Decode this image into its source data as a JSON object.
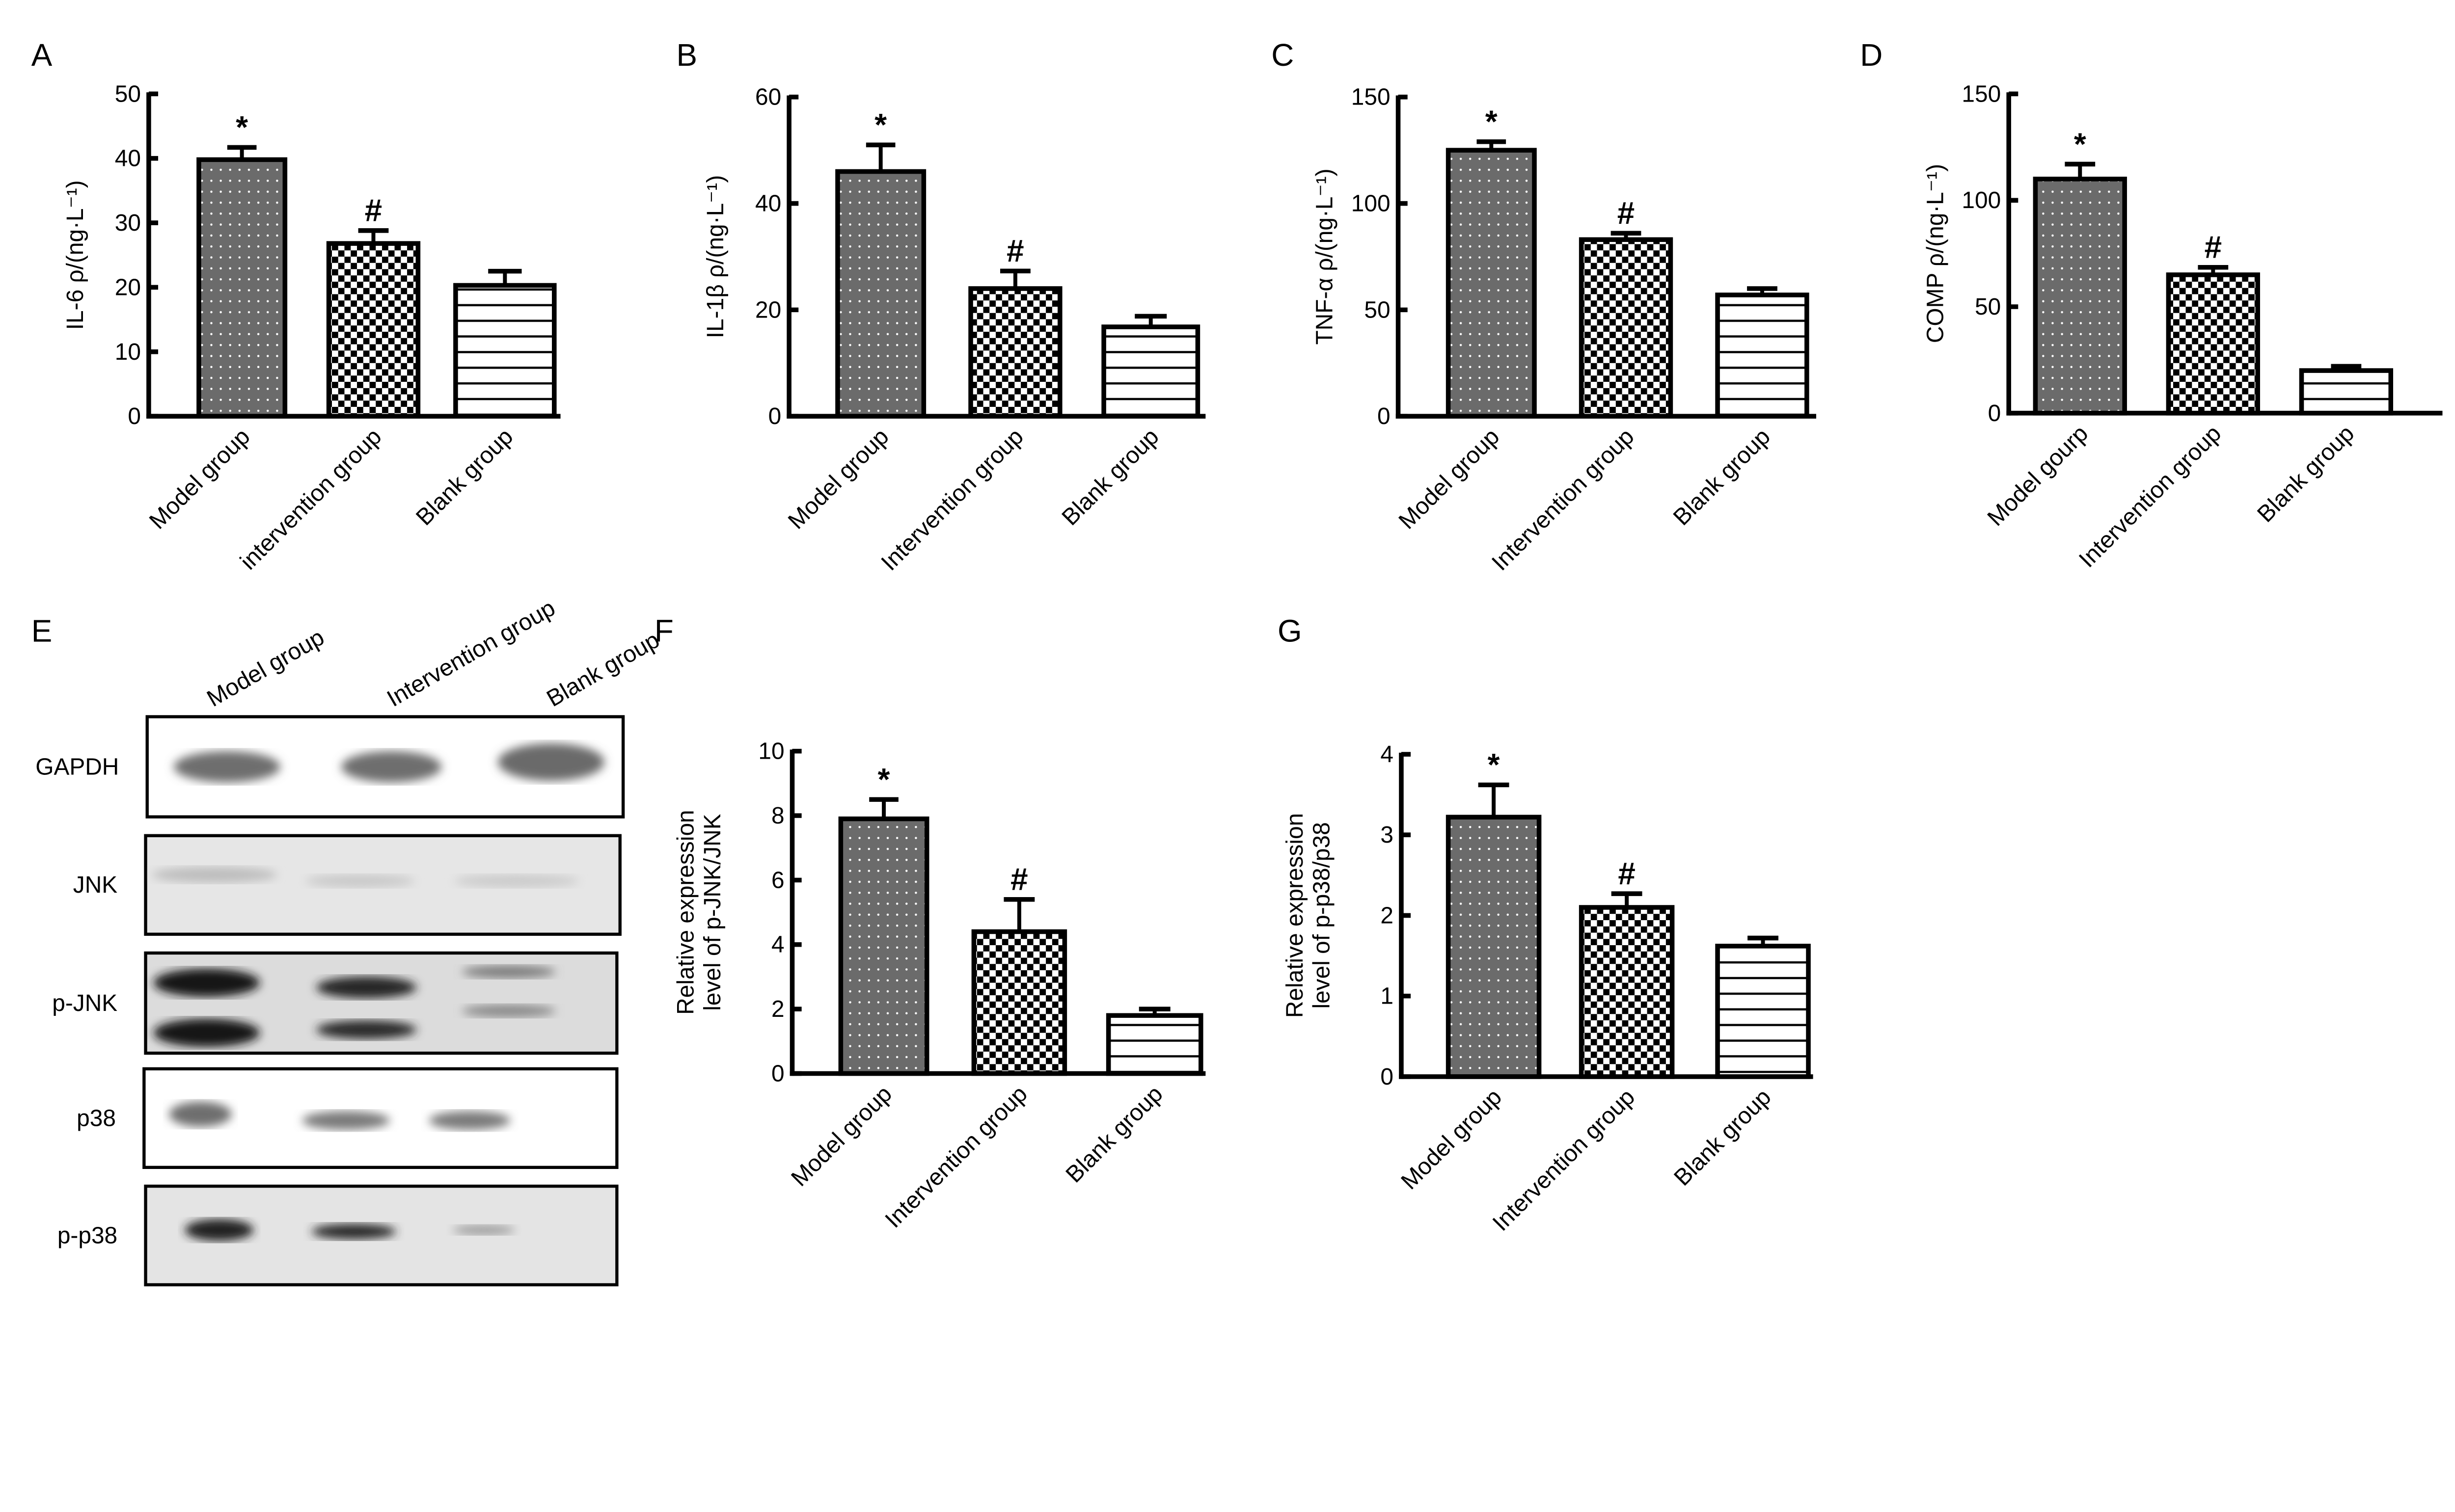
{
  "panels": {
    "A": "A",
    "B": "B",
    "C": "C",
    "D": "D",
    "E": "E",
    "F": "F",
    "G": "G"
  },
  "colors": {
    "model_fill": "#6b6b6b",
    "axis": "#000000",
    "background": "#ffffff"
  },
  "western_blot": {
    "lanes": [
      "Model group",
      "Intervention group",
      "Blank group"
    ],
    "rows": [
      "GAPDH",
      "JNK",
      "p-JNK",
      "p38",
      "p-p38"
    ]
  },
  "chart_data": [
    {
      "id": "A",
      "type": "bar",
      "categories": [
        "Model group",
        "intervention group",
        "Blank group"
      ],
      "values": [
        39.8,
        26.8,
        20.3
      ],
      "errors": [
        1.9,
        2.0,
        2.2
      ],
      "annotations": [
        "*",
        "#",
        ""
      ],
      "patterns": [
        "dots",
        "checker",
        "hlines"
      ],
      "ylabel": [
        "IL-6 ρ/(ng·L⁻¹)"
      ],
      "ylim": [
        0,
        50
      ],
      "yticks": [
        "0",
        "10",
        "20",
        "30",
        "40",
        "50"
      ],
      "grid": false
    },
    {
      "id": "B",
      "type": "bar",
      "categories": [
        "Model group",
        "Intervention group",
        "Blank group"
      ],
      "values": [
        46.0,
        24.0,
        16.8
      ],
      "errors": [
        5.0,
        3.3,
        2.0
      ],
      "annotations": [
        "*",
        "#",
        ""
      ],
      "patterns": [
        "dots",
        "checker",
        "hlines"
      ],
      "ylabel": [
        "IL-1β ρ/(ng·L⁻¹)"
      ],
      "ylim": [
        0,
        60
      ],
      "yticks": [
        "0",
        "20",
        "40",
        "60"
      ],
      "grid": false
    },
    {
      "id": "C",
      "type": "bar",
      "categories": [
        "Model group",
        "Intervention group",
        "Blank group"
      ],
      "values": [
        125,
        83,
        57
      ],
      "errors": [
        4,
        3,
        3
      ],
      "annotations": [
        "*",
        "#",
        ""
      ],
      "patterns": [
        "dots",
        "checker",
        "hlines"
      ],
      "ylabel": [
        "TNF-α ρ/(ng·L⁻¹)"
      ],
      "ylim": [
        0,
        150
      ],
      "yticks": [
        "0",
        "50",
        "100",
        "150"
      ],
      "grid": false
    },
    {
      "id": "D",
      "type": "bar",
      "categories": [
        "Model gourp",
        "Intervention group",
        "Blank group"
      ],
      "values": [
        110,
        65,
        20
      ],
      "errors": [
        7,
        3.5,
        2
      ],
      "annotations": [
        "*",
        "#",
        ""
      ],
      "patterns": [
        "dots",
        "checker",
        "hlines"
      ],
      "ylabel": [
        "COMP ρ/(ng·L⁻¹)"
      ],
      "ylim": [
        0,
        150
      ],
      "yticks": [
        "0",
        "50",
        "100",
        "150"
      ],
      "grid": false
    },
    {
      "id": "F",
      "type": "bar",
      "categories": [
        "Model group",
        "Intervention group",
        "Blank group"
      ],
      "values": [
        7.9,
        4.4,
        1.8
      ],
      "errors": [
        0.6,
        1.0,
        0.2
      ],
      "annotations": [
        "*",
        "#",
        ""
      ],
      "patterns": [
        "dots",
        "checker",
        "hlines"
      ],
      "ylabel": [
        "Relative expression",
        "level of p-JNK/JNK"
      ],
      "ylim": [
        0,
        10
      ],
      "yticks": [
        "0",
        "2",
        "4",
        "6",
        "8",
        "10"
      ],
      "grid": false
    },
    {
      "id": "G",
      "type": "bar",
      "categories": [
        "Model group",
        "Intervention group",
        "Blank group"
      ],
      "values": [
        3.22,
        2.1,
        1.62
      ],
      "errors": [
        0.4,
        0.17,
        0.1
      ],
      "annotations": [
        "*",
        "#",
        ""
      ],
      "patterns": [
        "dots",
        "checker",
        "hlines"
      ],
      "ylabel": [
        "Relative expression",
        "level of p-p38/p38"
      ],
      "ylim": [
        0,
        4
      ],
      "yticks": [
        "0",
        "1",
        "2",
        "3",
        "4"
      ],
      "grid": false
    }
  ]
}
